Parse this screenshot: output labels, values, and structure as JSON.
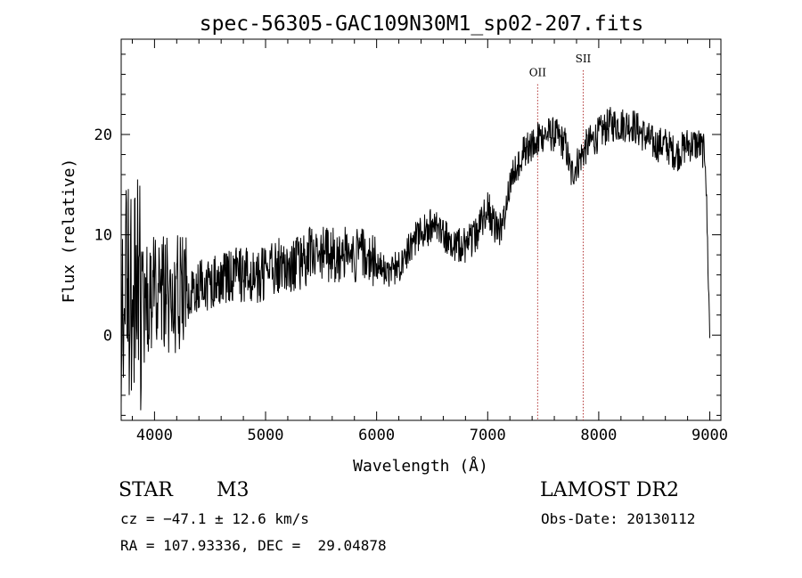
{
  "chart_data": {
    "type": "line",
    "title": "spec-56305-GAC109N30M1_sp02-207.fits",
    "xlabel": "Wavelength (Å)",
    "ylabel": "Flux (relative)",
    "xlim": [
      3700,
      9100
    ],
    "ylim": [
      -8.5,
      29.5
    ],
    "x_ticks": [
      4000,
      5000,
      6000,
      7000,
      8000,
      9000
    ],
    "y_ticks": [
      0,
      10,
      20
    ],
    "grid": false,
    "line_color": "#000000",
    "lines": [
      {
        "label": "OII",
        "x": 7450,
        "label_y": 25.8
      },
      {
        "label": "SII",
        "x": 7860,
        "label_y": 27.2
      }
    ],
    "series": [
      {
        "x": [
          3700,
          3750,
          3800,
          3850,
          3900,
          3950,
          4000,
          4100,
          4200,
          4300,
          4400,
          4500,
          4600,
          4700,
          4800,
          4900,
          5000,
          5100,
          5200,
          5300,
          5400,
          5500,
          5600,
          5700,
          5800,
          5900,
          6000,
          6100,
          6200,
          6300,
          6400,
          6500,
          6600,
          6700,
          6800,
          6900,
          7000,
          7050,
          7100,
          7150,
          7200,
          7300,
          7400,
          7500,
          7600,
          7700,
          7750,
          7800,
          7900,
          8000,
          8100,
          8200,
          8300,
          8400,
          8500,
          8600,
          8700,
          8800,
          8900,
          8960,
          9000
        ],
        "y": [
          2,
          4,
          3,
          5,
          3,
          3,
          4,
          4,
          4,
          4,
          5,
          5,
          6,
          6,
          6,
          6,
          6,
          7,
          7,
          7,
          8,
          8,
          8,
          8,
          8,
          8,
          7,
          6,
          7,
          9,
          10,
          11,
          10,
          9,
          9,
          10,
          13,
          11,
          10,
          12,
          15,
          18,
          19,
          20,
          20,
          19,
          16,
          17,
          19,
          20,
          21,
          21,
          21,
          20,
          19,
          19,
          18,
          19,
          19,
          18,
          0
        ]
      }
    ]
  },
  "info": {
    "class_label": "STAR",
    "subclass": "M3",
    "survey": "LAMOST DR2",
    "cz": "cz = −47.1 ± 12.6 km/s",
    "obs_date": "Obs-Date: 20130112",
    "coords": "RA = 107.93336, DEC =  29.04878"
  }
}
